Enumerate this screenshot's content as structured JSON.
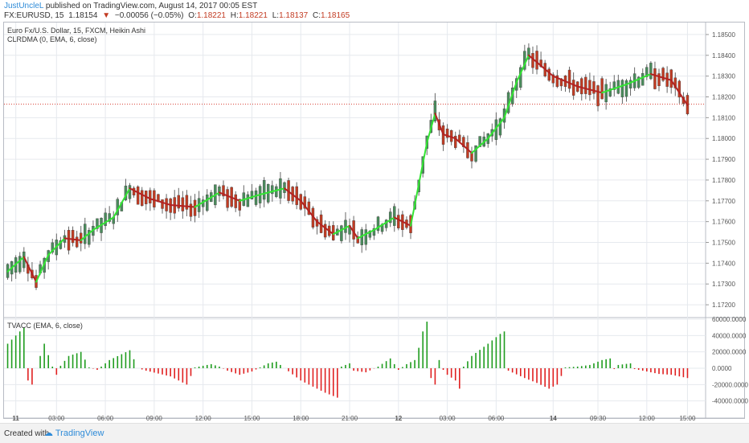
{
  "header": {
    "user": "JustUncleL",
    "published": "published on TradingView.com, August 14, 2017 00:05 EST",
    "symbol": "FX:EURUSD, 15",
    "last": "1.18154",
    "change_arrow": "▼",
    "change": "−0.00056 (−0.05%)",
    "o_label": "O:",
    "o_value": "1.18221",
    "h_label": "H:",
    "h_value": "1.18221",
    "l_label": "L:",
    "l_value": "1.18137",
    "c_label": "C:",
    "c_value": "1.18165"
  },
  "legend": {
    "line1": "Euro Fx/U.S. Dollar, 15, FXCM, Heikin Ashi",
    "line2": "CLRDMA (0, EMA, 6, close)",
    "line3": "TVACC (EMA, 6, close)"
  },
  "footer": {
    "created": "Created with",
    "brand": "TradingView"
  },
  "colors": {
    "up": "#4a8c5c",
    "down": "#c23b22",
    "ma_up": "#33e533",
    "ma_down": "#b22222",
    "hist_up": "#1e9c1e",
    "hist_down": "#e02020",
    "grid": "#e6e9ee",
    "price_line": "#d9453a"
  },
  "chart_data": [
    {
      "type": "candlestick",
      "title": "Euro Fx/U.S. Dollar, 15, FXCM, Heikin Ashi",
      "ylim": [
        1.1715,
        1.1855
      ],
      "y_ticks": [
        "1.18500",
        "1.18400",
        "1.18300",
        "1.18200",
        "1.18100",
        "1.18000",
        "1.17900",
        "1.17800",
        "1.17700",
        "1.17600",
        "1.17500",
        "1.17400",
        "1.17300",
        "1.17200"
      ],
      "y_tick_values": [
        1.185,
        1.184,
        1.183,
        1.182,
        1.181,
        1.18,
        1.179,
        1.178,
        1.177,
        1.176,
        1.175,
        1.174,
        1.173,
        1.172
      ],
      "x_ticks": [
        "11",
        "03:00",
        "06:00",
        "09:00",
        "12:00",
        "15:00",
        "18:00",
        "21:00",
        "12",
        "03:00",
        "06:00",
        "14",
        "09:30",
        "12:00",
        "15:00"
      ],
      "current_price": 1.18165,
      "ma_name": "CLRDMA (0, EMA, 6, close)",
      "anchors": [
        [
          0,
          1.1736
        ],
        [
          4,
          1.1743
        ],
        [
          7,
          1.1731
        ],
        [
          10,
          1.1744
        ],
        [
          14,
          1.1752
        ],
        [
          18,
          1.1751
        ],
        [
          21,
          1.1756
        ],
        [
          26,
          1.1762
        ],
        [
          30,
          1.1776
        ],
        [
          35,
          1.1771
        ],
        [
          40,
          1.1768
        ],
        [
          46,
          1.1767
        ],
        [
          52,
          1.1774
        ],
        [
          57,
          1.177
        ],
        [
          62,
          1.1773
        ],
        [
          68,
          1.1776
        ],
        [
          72,
          1.177
        ],
        [
          76,
          1.176
        ],
        [
          80,
          1.1754
        ],
        [
          84,
          1.1758
        ],
        [
          86,
          1.1752
        ],
        [
          90,
          1.1756
        ],
        [
          95,
          1.1762
        ],
        [
          99,
          1.1758
        ],
        [
          101,
          1.1778
        ],
        [
          103,
          1.1798
        ],
        [
          105,
          1.1812
        ],
        [
          107,
          1.1802
        ],
        [
          110,
          1.18
        ],
        [
          114,
          1.1793
        ],
        [
          118,
          1.18
        ],
        [
          122,
          1.181
        ],
        [
          125,
          1.1827
        ],
        [
          128,
          1.184
        ],
        [
          131,
          1.1835
        ],
        [
          134,
          1.183
        ],
        [
          140,
          1.1825
        ],
        [
          146,
          1.1822
        ],
        [
          152,
          1.1826
        ],
        [
          158,
          1.1831
        ],
        [
          163,
          1.1828
        ],
        [
          167,
          1.1816
        ]
      ]
    },
    {
      "type": "bar",
      "title": "TVACC (EMA, 6, close)",
      "ylim": [
        -60000,
        60000
      ],
      "y_ticks": [
        "60000.0000",
        "40000.0000",
        "20000.0000",
        "0.0000",
        "-20000.0000",
        "-40000.0000"
      ],
      "y_tick_values": [
        60000,
        40000,
        20000,
        0,
        -20000,
        -40000
      ],
      "anchors": [
        [
          0,
          30000
        ],
        [
          4,
          50000
        ],
        [
          5,
          -15000
        ],
        [
          6,
          -20000
        ],
        [
          7,
          0
        ],
        [
          9,
          30000
        ],
        [
          11,
          2000
        ],
        [
          12,
          -8000
        ],
        [
          13,
          3000
        ],
        [
          15,
          15000
        ],
        [
          18,
          20000
        ],
        [
          20,
          1000
        ],
        [
          22,
          -2000
        ],
        [
          25,
          10000
        ],
        [
          30,
          22000
        ],
        [
          32,
          0
        ],
        [
          34,
          -3000
        ],
        [
          40,
          -10000
        ],
        [
          44,
          -20000
        ],
        [
          46,
          1000
        ],
        [
          50,
          5000
        ],
        [
          52,
          2000
        ],
        [
          54,
          -3000
        ],
        [
          57,
          -8000
        ],
        [
          60,
          -4000
        ],
        [
          64,
          6000
        ],
        [
          66,
          8000
        ],
        [
          68,
          0
        ],
        [
          72,
          -15000
        ],
        [
          78,
          -30000
        ],
        [
          81,
          -36000
        ],
        [
          82,
          2000
        ],
        [
          84,
          6000
        ],
        [
          85,
          -3000
        ],
        [
          88,
          -5000
        ],
        [
          91,
          2000
        ],
        [
          94,
          12000
        ],
        [
          96,
          -2000
        ],
        [
          98,
          5000
        ],
        [
          100,
          10000
        ],
        [
          101,
          25000
        ],
        [
          102,
          45000
        ],
        [
          103,
          57000
        ],
        [
          104,
          -12000
        ],
        [
          105,
          -20000
        ],
        [
          106,
          10000
        ],
        [
          107,
          -2000
        ],
        [
          108,
          -8000
        ],
        [
          110,
          -15000
        ],
        [
          111,
          -25000
        ],
        [
          112,
          2000
        ],
        [
          114,
          15000
        ],
        [
          118,
          30000
        ],
        [
          121,
          42000
        ],
        [
          122,
          45000
        ],
        [
          123,
          -3000
        ],
        [
          127,
          -12000
        ],
        [
          130,
          -18000
        ],
        [
          133,
          -25000
        ],
        [
          135,
          -20000
        ],
        [
          137,
          1000
        ],
        [
          140,
          2000
        ],
        [
          143,
          4000
        ],
        [
          146,
          10000
        ],
        [
          148,
          12000
        ],
        [
          149,
          -1000
        ],
        [
          150,
          4000
        ],
        [
          153,
          6000
        ],
        [
          154,
          -1000
        ],
        [
          157,
          -4000
        ],
        [
          160,
          -7000
        ],
        [
          163,
          -8000
        ],
        [
          167,
          -12000
        ]
      ]
    }
  ]
}
